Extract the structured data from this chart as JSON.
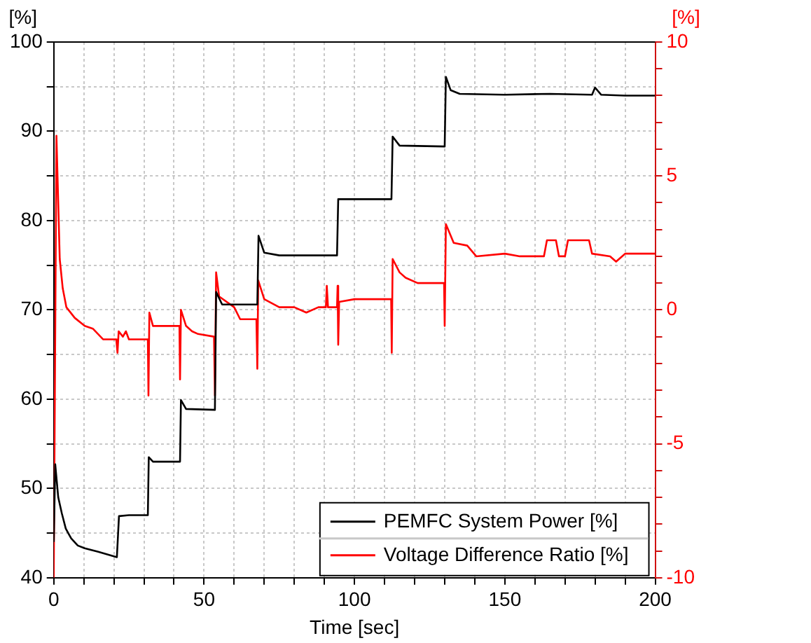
{
  "chart_data": {
    "type": "line",
    "xlabel": "Time [sec]",
    "ylabel": "[%]",
    "y2label": "[%]",
    "xlim": [
      0,
      200
    ],
    "xticks": [
      0,
      {
        "value": 10,
        "label": null
      },
      {
        "value": 20,
        "label": null
      },
      {
        "value": 30,
        "label": null
      },
      {
        "value": 40,
        "label": null
      },
      50,
      {
        "value": 60,
        "label": null
      },
      {
        "value": 70,
        "label": null
      },
      {
        "value": 80,
        "label": null
      },
      {
        "value": 90,
        "label": null
      },
      100,
      {
        "value": 110,
        "label": null
      },
      {
        "value": 120,
        "label": null
      },
      {
        "value": 130,
        "label": null
      },
      {
        "value": 140,
        "label": null
      },
      150,
      {
        "value": 160,
        "label": null
      },
      {
        "value": 170,
        "label": null
      },
      {
        "value": 180,
        "label": null
      },
      {
        "value": 190,
        "label": null
      },
      200
    ],
    "ylim": [
      40,
      100
    ],
    "yticks": [
      40,
      {
        "value": 45,
        "label": null
      },
      50,
      {
        "value": 55,
        "label": null
      },
      60,
      {
        "value": 65,
        "label": null
      },
      70,
      {
        "value": 75,
        "label": null
      },
      80,
      {
        "value": 85,
        "label": null
      },
      90,
      {
        "value": 95,
        "label": null
      },
      100
    ],
    "y2lim": [
      -10,
      10
    ],
    "y2ticks": [
      -10,
      {
        "value": -9,
        "label": null
      },
      {
        "value": -8,
        "label": null
      },
      {
        "value": -7,
        "label": null
      },
      {
        "value": -6,
        "label": null
      },
      -5,
      {
        "value": -4,
        "label": null
      },
      {
        "value": -3,
        "label": null
      },
      {
        "value": -2,
        "label": null
      },
      {
        "value": -1,
        "label": null
      },
      0,
      {
        "value": 1,
        "label": null
      },
      {
        "value": 2,
        "label": null
      },
      {
        "value": 3,
        "label": null
      },
      {
        "value": 4,
        "label": null
      },
      5,
      {
        "value": 6,
        "label": null
      },
      {
        "value": 7,
        "label": null
      },
      {
        "value": 8,
        "label": null
      },
      {
        "value": 9,
        "label": null
      },
      10
    ],
    "grid": true,
    "legend": "bottom right",
    "marker": "none",
    "series": [
      {
        "name": "PEMFC System Power [%]",
        "color": "#000000",
        "x": [
          0,
          0.5,
          1.5,
          2.7,
          4,
          5.8,
          8,
          10.3,
          14.8,
          18,
          21,
          21.7,
          25,
          31.3,
          31.6,
          33,
          42,
          42.3,
          44,
          53.6,
          54,
          56,
          67.7,
          68.1,
          70,
          75,
          94.2,
          94.6,
          112.3,
          112.7,
          115,
          130,
          130.4,
          132,
          135,
          150,
          165,
          179,
          180,
          182,
          190,
          200
        ],
        "values": [
          44,
          52.7,
          49,
          47.2,
          45.5,
          44.4,
          43.6,
          43.3,
          42.9,
          42.6,
          42.3,
          46.9,
          47,
          47,
          53.5,
          53,
          53,
          59.9,
          58.9,
          58.8,
          72,
          70.6,
          70.6,
          78.3,
          76.4,
          76.1,
          76.1,
          82.4,
          82.4,
          89.4,
          88.4,
          88.3,
          96.1,
          94.6,
          94.2,
          94.1,
          94.2,
          94.1,
          94.9,
          94.1,
          94,
          94
        ]
      },
      {
        "name": "Voltage Difference Ratio [%]",
        "color": "#ff0000",
        "axis": "y2",
        "x": [
          0,
          0.9,
          1.5,
          2,
          3,
          4.2,
          7,
          10.3,
          13,
          16.4,
          20.8,
          21.2,
          21.6,
          23,
          24,
          25,
          31.3,
          31.5,
          31.8,
          33,
          41.8,
          42,
          42.3,
          44,
          46,
          48,
          53.3,
          53.6,
          54,
          55,
          60,
          62,
          67.4,
          67.7,
          68,
          70,
          75,
          80,
          84,
          88,
          90.5,
          90.8,
          91.2,
          94.2,
          94.4,
          94.6,
          94.9,
          100,
          112.2,
          112.4,
          112.7,
          115,
          117,
          121,
          129.8,
          130,
          130.4,
          133,
          137.5,
          140.5,
          150,
          155,
          163,
          164,
          167,
          168,
          170,
          171,
          178,
          179,
          185,
          187,
          189,
          190,
          200
        ],
        "values": [
          -10,
          6.5,
          4,
          1.9,
          0.8,
          0.1,
          -0.3,
          -0.6,
          -0.7,
          -1.1,
          -1.1,
          -1.6,
          -0.8,
          -1,
          -0.8,
          -1.1,
          -1.1,
          -3.2,
          -0.1,
          -0.6,
          -0.6,
          -2.6,
          0,
          -0.6,
          -0.8,
          -0.9,
          -1,
          -3.2,
          1.4,
          0.5,
          0.1,
          -0.35,
          -0.35,
          -2.2,
          1.1,
          0.4,
          0.1,
          0.1,
          -0.1,
          0.1,
          0.1,
          0.9,
          0.1,
          0.1,
          0.9,
          -1.3,
          0.3,
          0.4,
          0.4,
          -1.6,
          1.9,
          1.4,
          1.2,
          1,
          1,
          -0.6,
          3.2,
          2.5,
          2.4,
          2,
          2.1,
          2,
          2,
          2.6,
          2.6,
          2,
          2,
          2.6,
          2.6,
          2.1,
          2,
          1.8,
          2,
          2.1,
          2.1
        ]
      }
    ]
  }
}
